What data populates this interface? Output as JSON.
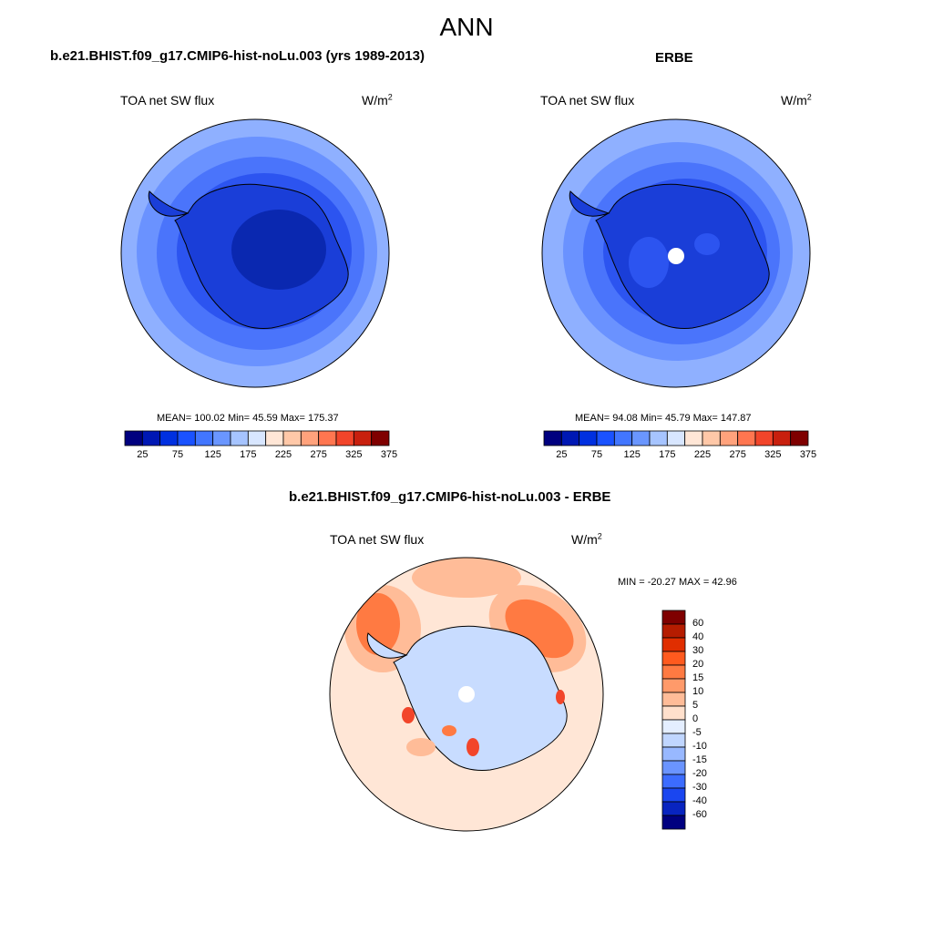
{
  "main_title": "ANN",
  "panels": [
    {
      "title": "b.e21.BHIST.f09_g17.CMIP6-hist-noLu.003 (yrs 1989-2013)",
      "variable": "TOA net SW flux",
      "units_base": "W/m",
      "units_exp": "2",
      "stats": "MEAN= 100.02  Min=  45.59  Max= 175.37"
    },
    {
      "title": "ERBE",
      "variable": "TOA net SW flux",
      "units_base": "W/m",
      "units_exp": "2",
      "stats": "MEAN=  94.08  Min=  45.79  Max= 147.87"
    },
    {
      "title": "b.e21.BHIST.f09_g17.CMIP6-hist-noLu.003 - ERBE",
      "variable": "TOA net SW flux",
      "units_base": "W/m",
      "units_exp": "2",
      "stats": "MIN = -20.27 MAX =  42.96"
    }
  ],
  "colorbar_top": {
    "colors": [
      "#00007f",
      "#0018b4",
      "#0030e0",
      "#1a52ff",
      "#4276ff",
      "#6a96ff",
      "#a6c4ff",
      "#d8e6ff",
      "#ffe6d6",
      "#ffc8a8",
      "#ffa27c",
      "#ff7650",
      "#f2452a",
      "#c8200e",
      "#7f0000"
    ],
    "labels": [
      "25",
      "75",
      "125",
      "175",
      "225",
      "275",
      "325",
      "375"
    ]
  },
  "colorbar_diff": {
    "colors": [
      "#7f0000",
      "#b51c00",
      "#e02e00",
      "#ff5a1e",
      "#ff7a42",
      "#ff9a6a",
      "#ffbc98",
      "#ffe0cc",
      "#e4eeff",
      "#c0d6ff",
      "#98b8ff",
      "#6a94ff",
      "#3c6cff",
      "#1a46f0",
      "#0824c0",
      "#000080"
    ],
    "labels": [
      "60",
      "40",
      "30",
      "20",
      "15",
      "10",
      "5",
      "0",
      "-5",
      "-10",
      "-15",
      "-20",
      "-30",
      "-40",
      "-60"
    ]
  },
  "map_colors": {
    "c_ring1": "#8fb0ff",
    "c_ring2": "#6a92ff",
    "c_ring3": "#4a74fb",
    "c_ring4": "#2c54f0",
    "c_land": "#1a3ed8",
    "c_plateau": "#0a28b0",
    "d_base": "#ffe6d6",
    "d_cold": "#c8dcff",
    "d_warm": "#ffbc98",
    "d_hot": "#ff7a42",
    "d_hotter": "#f2452a"
  }
}
